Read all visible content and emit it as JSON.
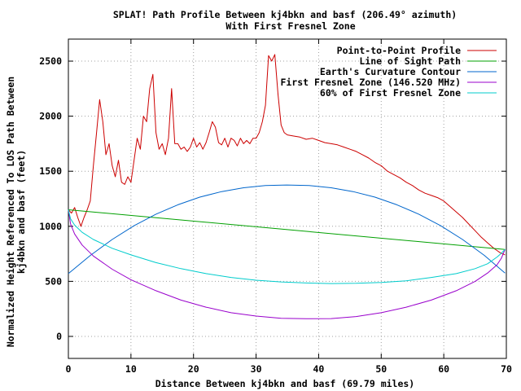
{
  "chart_data": {
    "type": "line",
    "title": "SPLAT! Path Profile Between kj4bkn and basf (206.49° azimuth)",
    "subtitle": "With First Fresnel Zone",
    "xlabel": "Distance Between kj4bkn and basf (69.79 miles)",
    "ylabel_line1": "Normalized Height Referenced To LOS Path Between",
    "ylabel_line2": "kj4bkn and basf (feet)",
    "xlim": [
      0,
      70
    ],
    "ylim": [
      -200,
      2700
    ],
    "xticks": [
      "0",
      "10",
      "20",
      "30",
      "40",
      "50",
      "60",
      "70"
    ],
    "yticks": [
      "0",
      "500",
      "1000",
      "1500",
      "2000",
      "2500"
    ],
    "grid": true,
    "legend_position": "top-right",
    "series": [
      {
        "name": "Point-to-Point Profile",
        "color": "#cc0000",
        "x": [
          0,
          0.5,
          1,
          1.5,
          2,
          2.5,
          3,
          3.5,
          4,
          4.5,
          5,
          5.5,
          6,
          6.5,
          7,
          7.5,
          8,
          8.5,
          9,
          9.5,
          10,
          10.5,
          11,
          11.5,
          12,
          12.5,
          13,
          13.5,
          14,
          14.5,
          15,
          15.5,
          16,
          16.5,
          17,
          17.5,
          18,
          18.5,
          19,
          19.5,
          20,
          20.5,
          21,
          21.5,
          22,
          22.5,
          23,
          23.5,
          24,
          24.5,
          25,
          25.5,
          26,
          26.5,
          27,
          27.5,
          28,
          28.5,
          29,
          29.5,
          30,
          30.5,
          31,
          31.5,
          32,
          32.5,
          33,
          33.5,
          34,
          34.5,
          35,
          36,
          37,
          38,
          39,
          40,
          41,
          42,
          43,
          44,
          45,
          46,
          47,
          48,
          49,
          50,
          51,
          52,
          53,
          54,
          55,
          56,
          57,
          58,
          59,
          60,
          61,
          62,
          63,
          64,
          65,
          66,
          67,
          68,
          68.5,
          69,
          69.79
        ],
        "y": [
          1150,
          1120,
          1170,
          1080,
          1000,
          1080,
          1150,
          1230,
          1550,
          1850,
          2150,
          1950,
          1650,
          1750,
          1550,
          1450,
          1600,
          1400,
          1380,
          1450,
          1400,
          1600,
          1800,
          1700,
          2000,
          1950,
          2250,
          2380,
          1850,
          1700,
          1750,
          1650,
          1800,
          2250,
          1750,
          1750,
          1700,
          1720,
          1680,
          1720,
          1800,
          1720,
          1760,
          1700,
          1760,
          1850,
          1950,
          1900,
          1760,
          1740,
          1800,
          1720,
          1800,
          1780,
          1730,
          1800,
          1750,
          1780,
          1750,
          1800,
          1800,
          1850,
          1950,
          2100,
          2550,
          2500,
          2560,
          2200,
          1920,
          1850,
          1830,
          1820,
          1810,
          1790,
          1800,
          1780,
          1760,
          1750,
          1740,
          1720,
          1700,
          1680,
          1650,
          1620,
          1580,
          1550,
          1500,
          1470,
          1440,
          1400,
          1370,
          1330,
          1300,
          1280,
          1260,
          1230,
          1180,
          1130,
          1080,
          1020,
          960,
          900,
          850,
          800,
          780,
          760,
          740
        ]
      },
      {
        "name": "Line of Sight Path",
        "color": "#00a000",
        "x": [
          0,
          69.79
        ],
        "y": [
          1150,
          790
        ]
      },
      {
        "name": "Earth's Curvature Contour",
        "color": "#0066cc",
        "x": [
          0,
          3.5,
          7,
          10.5,
          14,
          17.5,
          21,
          24.5,
          28,
          31.5,
          34.9,
          38.5,
          42,
          45.5,
          49,
          52.5,
          56,
          59.5,
          63,
          66.5,
          69.79
        ],
        "y": [
          570,
          735,
          880,
          1005,
          1110,
          1195,
          1265,
          1315,
          1350,
          1370,
          1375,
          1370,
          1350,
          1315,
          1265,
          1195,
          1110,
          1005,
          880,
          735,
          575
        ]
      },
      {
        "name": "First Fresnel Zone (146.520 MHz)",
        "color": "#9900cc",
        "x": [
          0,
          0.35,
          1,
          2.2,
          4,
          7,
          10,
          14,
          18,
          22,
          26,
          30,
          34,
          38,
          42,
          46,
          50,
          54,
          58,
          62,
          65,
          67,
          68.5,
          69.2,
          69.79
        ],
        "y": [
          1150,
          1020,
          930,
          830,
          730,
          610,
          515,
          415,
          330,
          265,
          215,
          185,
          165,
          160,
          162,
          180,
          215,
          265,
          330,
          415,
          500,
          575,
          650,
          710,
          790
        ]
      },
      {
        "name": "60% of First Fresnel Zone",
        "color": "#00cccc",
        "x": [
          0,
          0.35,
          1,
          2.2,
          4,
          7,
          10,
          14,
          18,
          22,
          26,
          30,
          34,
          38,
          42,
          46,
          50,
          54,
          58,
          62,
          65,
          67,
          68.5,
          69.2,
          69.79
        ],
        "y": [
          1150,
          1068,
          1010,
          945,
          880,
          800,
          740,
          670,
          615,
          570,
          535,
          510,
          495,
          485,
          480,
          482,
          490,
          505,
          535,
          570,
          615,
          660,
          720,
          755,
          790
        ]
      }
    ]
  }
}
